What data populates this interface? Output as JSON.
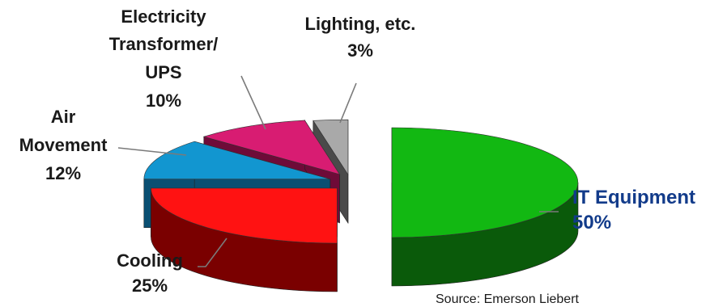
{
  "chart_data": {
    "type": "pie",
    "style": "3d-exploded",
    "title": "",
    "unit": "%",
    "slices": [
      {
        "key": "it",
        "lines": [
          "IT Equipment"
        ],
        "pct_label": "50%",
        "value": 50,
        "color": "#12b812",
        "side": "#0a5a0a"
      },
      {
        "key": "cooling",
        "lines": [
          "Cooling"
        ],
        "pct_label": "25%",
        "value": 25,
        "color": "#ff1212",
        "side": "#7a0000"
      },
      {
        "key": "air",
        "lines": [
          "Air",
          "Movement"
        ],
        "pct_label": "12%",
        "value": 12,
        "color": "#1296d0",
        "side": "#0a4f72"
      },
      {
        "key": "electric",
        "lines": [
          "Electricity",
          "Transformer/",
          "UPS"
        ],
        "pct_label": "10%",
        "value": 10,
        "color": "#d81c72",
        "side": "#6e0b38"
      },
      {
        "key": "lighting",
        "lines": [
          "Lighting, etc."
        ],
        "pct_label": "3%",
        "value": 3,
        "color": "#a9a9a9",
        "side": "#4a4a4a"
      }
    ],
    "label_color_emphasis": "#123b8a",
    "source": "Source: Emerson Liebert"
  }
}
